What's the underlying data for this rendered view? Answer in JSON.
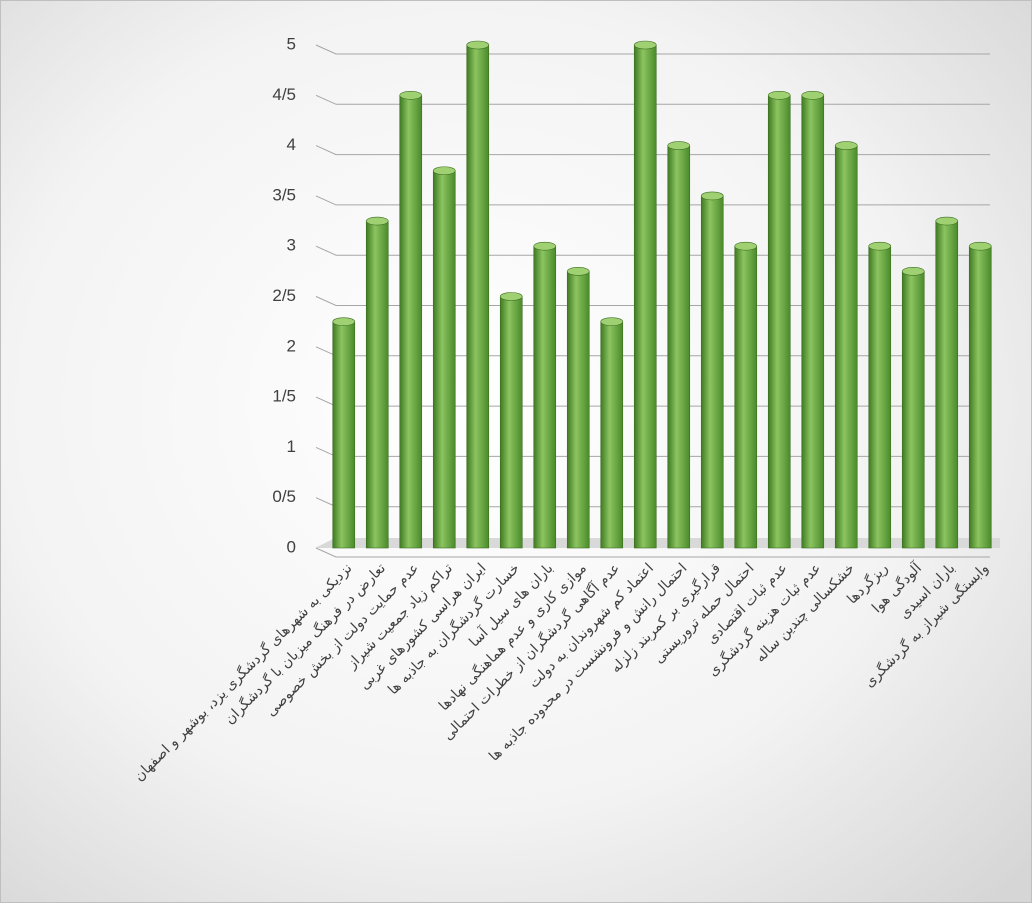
{
  "chart_data": {
    "type": "bar",
    "categories": [
      "نزدیکی به شهرهای گردشگری یزد، بوشهر و اصفهان",
      "تعارض در فرهنگ میزبان با گردشگران",
      "عدم حمایت دولت از بخش خصوصی",
      "تراکم زیاد جمعیت شیراز",
      "ایران هراسی کشورهای غربی",
      "خسارت گردشگران به جاذبه ها",
      "باران های سیل آسا",
      "موازی کاری و عدم هماهنگی نهادها",
      "عدم آگاهی گردشگران از خطرات احتمالی",
      "اعتماد کم شهروندان به دولت",
      "احتمال رانش و فرونشست در محدوده جاذبه ها",
      "قرارگیری بر کمربند زلزله",
      "احتمال حمله تروریستی",
      "عدم ثبات اقتصادی",
      "عدم ثبات هزینه گردشگری",
      "خشکسالی چندین ساله",
      "ریزگردها",
      "آلودگی هوا",
      "باران اسیدی",
      "وابستگی شیراز به گردشگری"
    ],
    "values": [
      2.25,
      3.25,
      4.5,
      3.75,
      5,
      2.5,
      3,
      2.75,
      2.25,
      5,
      4,
      3.5,
      3,
      4.5,
      4.5,
      4,
      3,
      2.75,
      3.25,
      3
    ],
    "color": "#6aa84f",
    "ylim": [
      0,
      5
    ],
    "yticks": [
      0,
      {
        "value": 0.5,
        "label": "0/5"
      },
      1,
      {
        "value": 1.5,
        "label": "1/5"
      },
      2,
      {
        "value": 2.5,
        "label": "2/5"
      },
      3,
      {
        "value": 3.5,
        "label": "3/5"
      },
      4,
      {
        "value": 4.5,
        "label": "4/5"
      },
      5
    ],
    "grid": true
  }
}
